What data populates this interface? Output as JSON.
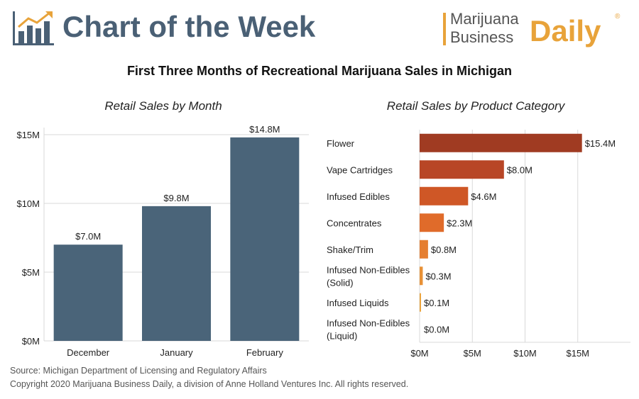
{
  "header": {
    "title": "Chart of the Week",
    "brand_line1": "Marijuana",
    "brand_line2": "Business",
    "brand_daily": "Daily",
    "brand_reg": "®"
  },
  "main_title": "First Three Months of Recreational Marijuana Sales in Michigan",
  "footer": {
    "source": "Source: Michigan Department of Licensing and Regulatory Affairs",
    "copyright": "Copyright 2020 Marijuana Business Daily, a division of Anne Holland Ventures Inc. All rights reserved."
  },
  "colors": {
    "header_blue": "#4a6075",
    "brand_orange": "#e8a33a",
    "bar_blue": "#4a6479"
  },
  "chart_data": [
    {
      "type": "bar",
      "title": "Retail Sales by Month",
      "categories": [
        "December",
        "January",
        "February"
      ],
      "values": [
        7.0,
        9.8,
        14.8
      ],
      "value_labels": [
        "$7.0M",
        "$9.8M",
        "$14.8M"
      ],
      "unit": "$M",
      "ylim": [
        0,
        15
      ],
      "yticks": [
        0,
        5,
        10,
        15
      ],
      "ytick_labels": [
        "$0M",
        "$5M",
        "$10M",
        "$15M"
      ],
      "grid": true,
      "xlabel": "",
      "ylabel": ""
    },
    {
      "type": "bar",
      "orientation": "horizontal",
      "title": "Retail Sales by Product Category",
      "categories": [
        [
          "Flower"
        ],
        [
          "Vape Cartridges"
        ],
        [
          "Infused Edibles"
        ],
        [
          "Concentrates"
        ],
        [
          "Shake/Trim"
        ],
        [
          "Infused Non-Edibles",
          "(Solid)"
        ],
        [
          "Infused Liquids"
        ],
        [
          "Infused Non-Edibles",
          "(Liquid)"
        ]
      ],
      "values": [
        15.4,
        8.0,
        4.6,
        2.3,
        0.8,
        0.3,
        0.1,
        0.0
      ],
      "value_labels": [
        "$15.4M",
        "$8.0M",
        "$4.6M",
        "$2.3M",
        "$0.8M",
        "$0.3M",
        "$0.1M",
        "$0.0M"
      ],
      "colors": [
        "#a03b22",
        "#b84626",
        "#cf5726",
        "#e06b2a",
        "#e57e30",
        "#e89136",
        "#eba43d",
        "#eebc4a"
      ],
      "unit": "$M",
      "xlim": [
        0,
        20
      ],
      "xticks": [
        0,
        5,
        10,
        15
      ],
      "xtick_labels": [
        "$0M",
        "$5M",
        "$10M",
        "$15M"
      ],
      "grid": true,
      "xlabel": "",
      "ylabel": ""
    }
  ]
}
